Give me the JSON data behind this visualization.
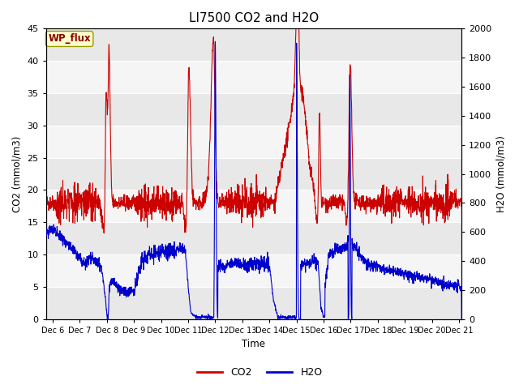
{
  "title": "LI7500 CO2 and H2O",
  "xlabel": "Time",
  "ylabel_left": "CO2 (mmol/m3)",
  "ylabel_right": "H2O (mmol/m3)",
  "ylim_left": [
    0,
    45
  ],
  "ylim_right": [
    0,
    2000
  ],
  "yticks_left": [
    0,
    5,
    10,
    15,
    20,
    25,
    30,
    35,
    40,
    45
  ],
  "yticks_right": [
    0,
    200,
    400,
    600,
    800,
    1000,
    1200,
    1400,
    1600,
    1800,
    2000
  ],
  "x_start": 5.75,
  "x_end": 21.1,
  "xtick_positions": [
    6,
    7,
    8,
    9,
    10,
    11,
    12,
    13,
    14,
    15,
    16,
    17,
    18,
    19,
    20,
    21
  ],
  "xtick_labels": [
    "Dec 6",
    "Dec 7",
    "Dec 8",
    "Dec 9",
    "Dec 10",
    "Dec 11",
    "Dec 12",
    "Dec 13",
    "Dec 14",
    "Dec 15",
    "Dec 16",
    "Dec 17",
    "Dec 18",
    "Dec 19",
    "Dec 20",
    "Dec 21"
  ],
  "annotation_text": "WP_flux",
  "co2_color": "#cc0000",
  "h2o_color": "#0000cc",
  "co2_linewidth": 0.8,
  "h2o_linewidth": 0.8,
  "legend_co2": "CO2",
  "legend_h2o": "H2O",
  "band_colors": [
    "#e8e8e8",
    "#f5f5f5"
  ],
  "title_fontsize": 11,
  "band_edges": [
    0,
    5,
    10,
    15,
    20,
    25,
    30,
    35,
    40,
    45
  ]
}
